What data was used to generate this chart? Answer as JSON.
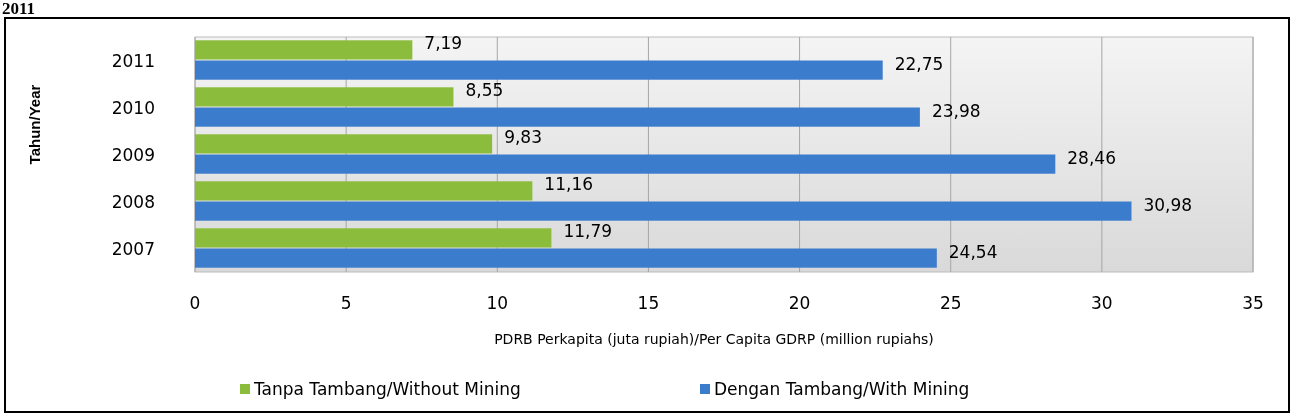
{
  "chart_data": {
    "type": "bar",
    "orientation": "horizontal",
    "title": "2011",
    "xlabel": "PDRB Perkapita (juta rupiah)/Per Capita GDRP (million rupiahs)",
    "ylabel": "Tahun/Year",
    "categories": [
      "2011",
      "2010",
      "2009",
      "2008",
      "2007"
    ],
    "series": [
      {
        "name": "Tanpa Tambang/Without Mining",
        "color": "#8cbc3c",
        "values": [
          7.19,
          8.55,
          9.83,
          11.16,
          11.79
        ],
        "value_labels": [
          "7,19",
          "8,55",
          "9,83",
          "11,16",
          "11,79"
        ]
      },
      {
        "name": "Dengan Tambang/With Mining",
        "color": "#3c7ccc",
        "values": [
          22.75,
          23.98,
          28.46,
          30.98,
          24.54
        ],
        "value_labels": [
          "22,75",
          "23,98",
          "28,46",
          "30,98",
          "24,54"
        ]
      }
    ],
    "xlim": [
      0,
      35
    ],
    "xticks": [
      0,
      5,
      10,
      15,
      20,
      25,
      30,
      35
    ],
    "grid": "x",
    "legend": "bottom"
  }
}
